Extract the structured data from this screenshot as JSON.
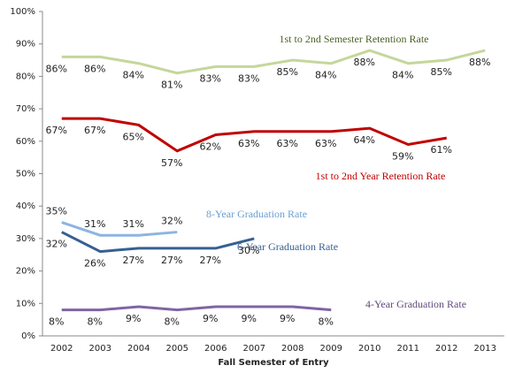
{
  "chart_data": {
    "type": "line",
    "x_label": "Fall Semester of Entry",
    "categories": [
      "2002",
      "2003",
      "2004",
      "2005",
      "2006",
      "2007",
      "2008",
      "2009",
      "2010",
      "2011",
      "2012",
      "2013"
    ],
    "ylim": [
      0,
      100
    ],
    "yticks": [
      {
        "value": 0,
        "label": "0%"
      },
      {
        "value": 10,
        "label": "10%"
      },
      {
        "value": 20,
        "label": "20%"
      },
      {
        "value": 30,
        "label": "30%"
      },
      {
        "value": 40,
        "label": "40%"
      },
      {
        "value": 50,
        "label": "50%"
      },
      {
        "value": 60,
        "label": "60%"
      },
      {
        "value": 70,
        "label": "70%"
      },
      {
        "value": 80,
        "label": "80%"
      },
      {
        "value": 90,
        "label": "90%"
      },
      {
        "value": 100,
        "label": "100%"
      }
    ],
    "grid": false,
    "series": [
      {
        "name": "1st to 2nd Semester Retention Rate",
        "color": "#c4d79b",
        "values": [
          86,
          86,
          84,
          81,
          83,
          83,
          85,
          84,
          88,
          84,
          85,
          88
        ],
        "value_labels": [
          "86%",
          "86%",
          "84%",
          "81%",
          "83%",
          "83%",
          "85%",
          "84%",
          "88%",
          "84%",
          "85%",
          "88%"
        ]
      },
      {
        "name": "1st to 2nd Year Retention Rate",
        "color": "#c00000",
        "values": [
          67,
          67,
          65,
          57,
          62,
          63,
          63,
          63,
          64,
          59,
          61,
          null
        ],
        "value_labels": [
          "67%",
          "67%",
          "65%",
          "57%",
          "62%",
          "63%",
          "63%",
          "63%",
          "64%",
          "59%",
          "61%",
          null
        ]
      },
      {
        "name": "8-Year Graduation Rate",
        "color": "#8db4e2",
        "values": [
          35,
          31,
          31,
          32,
          null,
          null,
          null,
          null,
          null,
          null,
          null,
          null
        ],
        "value_labels": [
          "35%",
          "31%",
          "31%",
          "32%",
          null,
          null,
          null,
          null,
          null,
          null,
          null,
          null
        ]
      },
      {
        "name": "6-Year Graduation Rate",
        "color": "#366092",
        "values": [
          32,
          26,
          27,
          27,
          27,
          30,
          null,
          null,
          null,
          null,
          null,
          null
        ],
        "value_labels": [
          "32%",
          "26%",
          "27%",
          "27%",
          "27%",
          "30%",
          null,
          null,
          null,
          null,
          null,
          null
        ]
      },
      {
        "name": "4-Year Graduation Rate",
        "color": "#8064a2",
        "values": [
          8,
          8,
          9,
          8,
          9,
          9,
          9,
          8,
          null,
          null,
          null,
          null
        ],
        "value_labels": [
          "8%",
          "8%",
          "9%",
          "8%",
          "9%",
          "9%",
          "9%",
          "8%",
          null,
          null,
          null,
          null
        ]
      }
    ]
  }
}
